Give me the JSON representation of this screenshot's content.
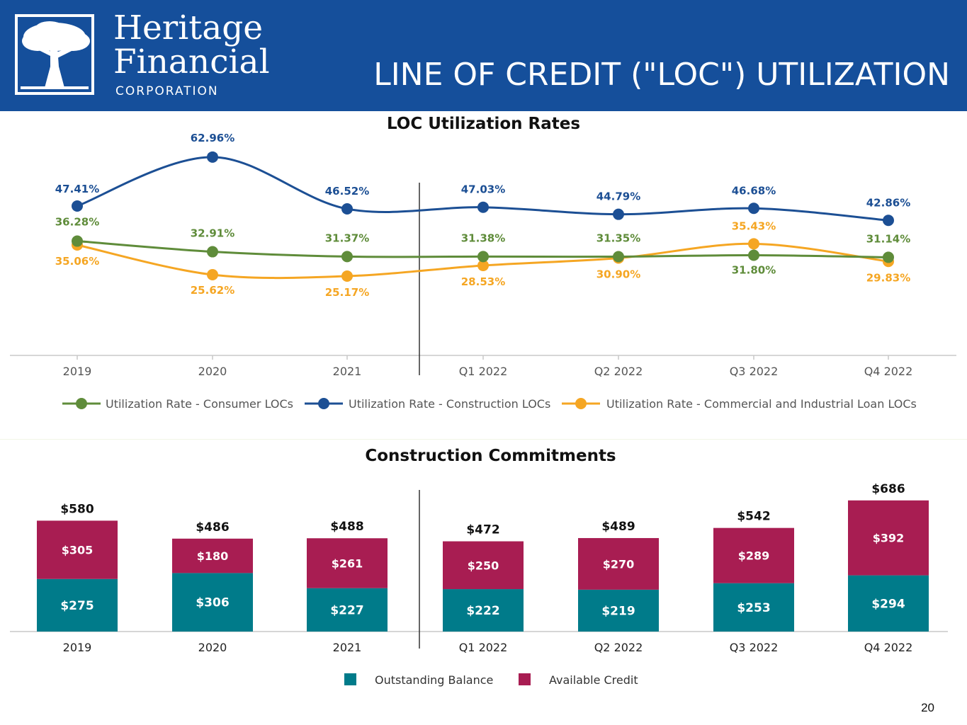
{
  "header": {
    "logo_name_line1": "Heritage",
    "logo_name_line2": "Financial",
    "logo_subtitle": "CORPORATION",
    "slide_title": "LINE OF CREDIT (\"LOC\") UTILIZATION",
    "background_color": "#154f9b",
    "logo_icon": "tree-icon"
  },
  "page_number": "20",
  "chart_data": [
    {
      "type": "line",
      "title": "LOC Utilization Rates",
      "categories": [
        "2019",
        "2020",
        "2021",
        "Q1 2022",
        "Q2 2022",
        "Q3 2022",
        "Q4 2022"
      ],
      "ylim": [
        0,
        70
      ],
      "grid": false,
      "legend_position": "bottom",
      "series": [
        {
          "name": "Utilization Rate - Consumer LOCs",
          "color": "#5f8c3a",
          "values": [
            36.28,
            32.91,
            31.37,
            31.38,
            31.35,
            31.8,
            31.14
          ],
          "labels": [
            "36.28%",
            "32.91%",
            "31.37%",
            "31.38%",
            "31.35%",
            "31.80%",
            "31.14%"
          ]
        },
        {
          "name": "Utilization Rate - Construction LOCs",
          "color": "#1c4f94",
          "values": [
            47.41,
            62.96,
            46.52,
            47.03,
            44.79,
            46.68,
            42.86
          ],
          "labels": [
            "47.41%",
            "62.96%",
            "46.52%",
            "47.03%",
            "44.79%",
            "46.68%",
            "42.86%"
          ]
        },
        {
          "name": "Utilization Rate - Commercial and Industrial Loan LOCs",
          "color": "#f5a623",
          "values": [
            35.06,
            25.62,
            25.17,
            28.53,
            30.9,
            35.43,
            29.83
          ],
          "labels": [
            "35.06%",
            "25.62%",
            "25.17%",
            "28.53%",
            "30.90%",
            "35.43%",
            "29.83%"
          ]
        }
      ]
    },
    {
      "type": "bar",
      "stacked": true,
      "title": "Construction Commitments",
      "categories": [
        "2019",
        "2020",
        "2021",
        "Q1 2022",
        "Q2 2022",
        "Q3 2022",
        "Q4 2022"
      ],
      "ylim": [
        0,
        700
      ],
      "legend_position": "bottom",
      "totals": [
        580,
        486,
        488,
        472,
        489,
        542,
        686
      ],
      "total_labels": [
        "$580",
        "$486",
        "$488",
        "$472",
        "$489",
        "$542",
        "$686"
      ],
      "series": [
        {
          "name": "Outstanding Balance",
          "color": "#007b8a",
          "values": [
            275,
            306,
            227,
            222,
            219,
            253,
            294
          ],
          "labels": [
            "$275",
            "$306",
            "$227",
            "$222",
            "$219",
            "$253",
            "$294"
          ]
        },
        {
          "name": "Available Credit",
          "color": "#a81d52",
          "values": [
            305,
            180,
            261,
            250,
            270,
            289,
            392
          ],
          "labels": [
            "$305",
            "$180",
            "$261",
            "$250",
            "$270",
            "$289",
            "$392"
          ]
        }
      ]
    }
  ]
}
